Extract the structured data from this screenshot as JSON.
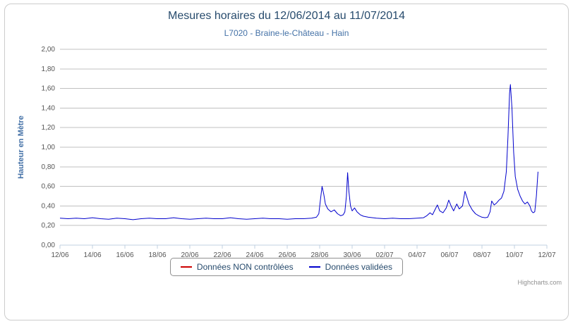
{
  "chart_data": {
    "type": "line",
    "title": "Mesures horaires du 12/06/2014 au 11/07/2014",
    "subtitle": "L7020 - Braine-le-Château - Hain",
    "ylabel": "Hauteur en Mètre",
    "xlabel": "",
    "xlim": [
      0,
      30
    ],
    "ylim": [
      0,
      2
    ],
    "grid": true,
    "legend_position": "bottom",
    "credit": "Highcharts.com",
    "colors": {
      "title": "#274b6d",
      "subtitle": "#4572a7",
      "grid": "#c0c0c0",
      "axis": "#c0d0e0",
      "tick_text": "#555555",
      "legend_text": "#274b6d",
      "legend_border": "#909090"
    },
    "x_ticks": {
      "values": [
        0,
        2,
        4,
        6,
        8,
        10,
        12,
        14,
        16,
        18,
        20,
        22,
        24,
        26,
        28,
        30
      ],
      "labels": [
        "12/06",
        "14/06",
        "16/06",
        "18/06",
        "20/06",
        "22/06",
        "24/06",
        "26/06",
        "28/06",
        "30/06",
        "02/07",
        "04/07",
        "06/07",
        "08/07",
        "10/07",
        "12/07"
      ]
    },
    "y_ticks": {
      "values": [
        0,
        0.2,
        0.4,
        0.6,
        0.8,
        1.0,
        1.2,
        1.4,
        1.6,
        1.8,
        2.0
      ],
      "labels": [
        "0,00",
        "0,20",
        "0,40",
        "0,60",
        "0,80",
        "1,00",
        "1,20",
        "1,40",
        "1,60",
        "1,80",
        "2,00"
      ]
    },
    "series": [
      {
        "name": "Données NON contrôlées",
        "color": "#cc0000",
        "points": []
      },
      {
        "name": "Données validées",
        "color": "#0000cc",
        "points": [
          [
            0,
            0.275
          ],
          [
            0.5,
            0.27
          ],
          [
            1,
            0.275
          ],
          [
            1.5,
            0.27
          ],
          [
            2,
            0.28
          ],
          [
            2.5,
            0.27
          ],
          [
            3,
            0.265
          ],
          [
            3.5,
            0.275
          ],
          [
            4,
            0.27
          ],
          [
            4.5,
            0.26
          ],
          [
            5,
            0.27
          ],
          [
            5.5,
            0.275
          ],
          [
            6,
            0.27
          ],
          [
            6.5,
            0.27
          ],
          [
            7,
            0.28
          ],
          [
            7.5,
            0.27
          ],
          [
            8,
            0.265
          ],
          [
            8.5,
            0.27
          ],
          [
            9,
            0.275
          ],
          [
            9.5,
            0.27
          ],
          [
            10,
            0.27
          ],
          [
            10.5,
            0.28
          ],
          [
            11,
            0.27
          ],
          [
            11.5,
            0.265
          ],
          [
            12,
            0.27
          ],
          [
            12.5,
            0.275
          ],
          [
            13,
            0.27
          ],
          [
            13.5,
            0.27
          ],
          [
            14,
            0.265
          ],
          [
            14.5,
            0.27
          ],
          [
            15,
            0.27
          ],
          [
            15.5,
            0.275
          ],
          [
            15.8,
            0.285
          ],
          [
            15.95,
            0.32
          ],
          [
            16.05,
            0.47
          ],
          [
            16.15,
            0.6
          ],
          [
            16.25,
            0.52
          ],
          [
            16.35,
            0.42
          ],
          [
            16.5,
            0.37
          ],
          [
            16.7,
            0.34
          ],
          [
            16.9,
            0.36
          ],
          [
            17.1,
            0.32
          ],
          [
            17.3,
            0.3
          ],
          [
            17.45,
            0.31
          ],
          [
            17.55,
            0.34
          ],
          [
            17.65,
            0.5
          ],
          [
            17.72,
            0.74
          ],
          [
            17.8,
            0.55
          ],
          [
            17.9,
            0.4
          ],
          [
            18,
            0.35
          ],
          [
            18.15,
            0.38
          ],
          [
            18.3,
            0.34
          ],
          [
            18.5,
            0.31
          ],
          [
            18.7,
            0.295
          ],
          [
            19,
            0.285
          ],
          [
            19.5,
            0.275
          ],
          [
            20,
            0.27
          ],
          [
            20.5,
            0.275
          ],
          [
            21,
            0.27
          ],
          [
            21.5,
            0.27
          ],
          [
            22,
            0.275
          ],
          [
            22.4,
            0.28
          ],
          [
            22.6,
            0.3
          ],
          [
            22.8,
            0.33
          ],
          [
            22.95,
            0.31
          ],
          [
            23.1,
            0.36
          ],
          [
            23.25,
            0.41
          ],
          [
            23.4,
            0.35
          ],
          [
            23.6,
            0.33
          ],
          [
            23.8,
            0.38
          ],
          [
            23.95,
            0.46
          ],
          [
            24.1,
            0.4
          ],
          [
            24.25,
            0.35
          ],
          [
            24.45,
            0.42
          ],
          [
            24.6,
            0.37
          ],
          [
            24.8,
            0.4
          ],
          [
            24.95,
            0.55
          ],
          [
            25.05,
            0.5
          ],
          [
            25.2,
            0.42
          ],
          [
            25.4,
            0.36
          ],
          [
            25.6,
            0.32
          ],
          [
            25.8,
            0.3
          ],
          [
            26,
            0.285
          ],
          [
            26.2,
            0.28
          ],
          [
            26.35,
            0.285
          ],
          [
            26.5,
            0.34
          ],
          [
            26.6,
            0.45
          ],
          [
            26.75,
            0.41
          ],
          [
            26.9,
            0.43
          ],
          [
            27.05,
            0.46
          ],
          [
            27.2,
            0.48
          ],
          [
            27.35,
            0.55
          ],
          [
            27.5,
            0.75
          ],
          [
            27.6,
            1.1
          ],
          [
            27.7,
            1.55
          ],
          [
            27.75,
            1.64
          ],
          [
            27.85,
            1.4
          ],
          [
            27.95,
            0.95
          ],
          [
            28.05,
            0.7
          ],
          [
            28.2,
            0.57
          ],
          [
            28.35,
            0.5
          ],
          [
            28.5,
            0.45
          ],
          [
            28.65,
            0.42
          ],
          [
            28.8,
            0.44
          ],
          [
            28.95,
            0.4
          ],
          [
            29.05,
            0.35
          ],
          [
            29.15,
            0.33
          ],
          [
            29.25,
            0.34
          ],
          [
            29.35,
            0.5
          ],
          [
            29.45,
            0.75
          ]
        ]
      }
    ]
  }
}
